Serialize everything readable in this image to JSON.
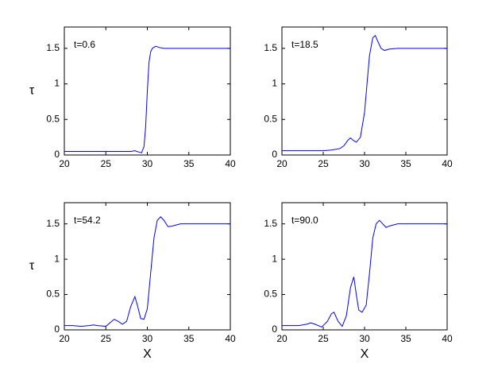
{
  "chart_data": [
    {
      "type": "line",
      "annotation": "t=0.6",
      "ylabel": "τ",
      "color": "#0000ff",
      "xlim": [
        20,
        40
      ],
      "ylim": [
        0,
        1.8
      ],
      "xticks": [
        20,
        25,
        30,
        35,
        40
      ],
      "yticks": [
        0,
        0.5,
        1,
        1.5
      ],
      "x": [
        20,
        22,
        24,
        26,
        28,
        28.5,
        29,
        29.3,
        29.6,
        29.8,
        30,
        30.2,
        30.4,
        30.6,
        31,
        31.5,
        32,
        34,
        36,
        38,
        40
      ],
      "values": [
        0.05,
        0.05,
        0.05,
        0.05,
        0.05,
        0.06,
        0.04,
        0.03,
        0.12,
        0.4,
        0.9,
        1.3,
        1.45,
        1.5,
        1.53,
        1.51,
        1.5,
        1.5,
        1.5,
        1.5,
        1.5
      ]
    },
    {
      "type": "line",
      "annotation": "t=18.5",
      "color": "#0000ff",
      "xlim": [
        20,
        40
      ],
      "ylim": [
        0,
        1.8
      ],
      "xticks": [
        20,
        25,
        30,
        35,
        40
      ],
      "yticks": [
        0,
        0.5,
        1,
        1.5
      ],
      "x": [
        20,
        22,
        24,
        25,
        26,
        27,
        27.5,
        28,
        28.3,
        28.7,
        29,
        29.5,
        30,
        30.3,
        30.6,
        31,
        31.3,
        31.6,
        32,
        32.4,
        33,
        34,
        36,
        38,
        40
      ],
      "values": [
        0.06,
        0.06,
        0.06,
        0.06,
        0.07,
        0.09,
        0.13,
        0.21,
        0.24,
        0.2,
        0.18,
        0.25,
        0.6,
        1.0,
        1.4,
        1.65,
        1.68,
        1.6,
        1.5,
        1.47,
        1.49,
        1.5,
        1.5,
        1.5,
        1.5
      ]
    },
    {
      "type": "line",
      "annotation": "t=54.2",
      "ylabel": "τ",
      "xlabel": "X",
      "color": "#0000ff",
      "xlim": [
        20,
        40
      ],
      "ylim": [
        0,
        1.8
      ],
      "xticks": [
        20,
        25,
        30,
        35,
        40
      ],
      "yticks": [
        0,
        0.5,
        1,
        1.5
      ],
      "x": [
        20,
        21,
        22,
        23,
        23.5,
        24,
        25,
        25.5,
        26,
        26.5,
        27,
        27.5,
        28,
        28.5,
        28.8,
        29.2,
        29.6,
        30,
        30.4,
        30.8,
        31.2,
        31.6,
        32,
        32.5,
        33,
        34,
        36,
        38,
        40
      ],
      "values": [
        0.06,
        0.06,
        0.05,
        0.06,
        0.07,
        0.06,
        0.05,
        0.1,
        0.15,
        0.12,
        0.08,
        0.12,
        0.33,
        0.47,
        0.35,
        0.16,
        0.15,
        0.3,
        0.8,
        1.3,
        1.55,
        1.6,
        1.55,
        1.46,
        1.47,
        1.5,
        1.5,
        1.5,
        1.5
      ]
    },
    {
      "type": "line",
      "annotation": "t=90.0",
      "xlabel": "X",
      "color": "#0000ff",
      "xlim": [
        20,
        40
      ],
      "ylim": [
        0,
        1.8
      ],
      "xticks": [
        20,
        25,
        30,
        35,
        40
      ],
      "yticks": [
        0,
        0.5,
        1,
        1.5
      ],
      "x": [
        20,
        21,
        22,
        23,
        23.5,
        24,
        24.8,
        25.5,
        26,
        26.3,
        26.8,
        27.3,
        27.8,
        28.3,
        28.7,
        29,
        29.3,
        29.7,
        30.2,
        30.6,
        31,
        31.4,
        31.8,
        32.2,
        32.6,
        33,
        34,
        36,
        38,
        40
      ],
      "values": [
        0.06,
        0.06,
        0.06,
        0.08,
        0.1,
        0.08,
        0.04,
        0.12,
        0.23,
        0.25,
        0.12,
        0.05,
        0.2,
        0.6,
        0.75,
        0.5,
        0.28,
        0.25,
        0.35,
        0.8,
        1.3,
        1.5,
        1.55,
        1.5,
        1.45,
        1.47,
        1.5,
        1.5,
        1.5,
        1.5
      ]
    }
  ]
}
